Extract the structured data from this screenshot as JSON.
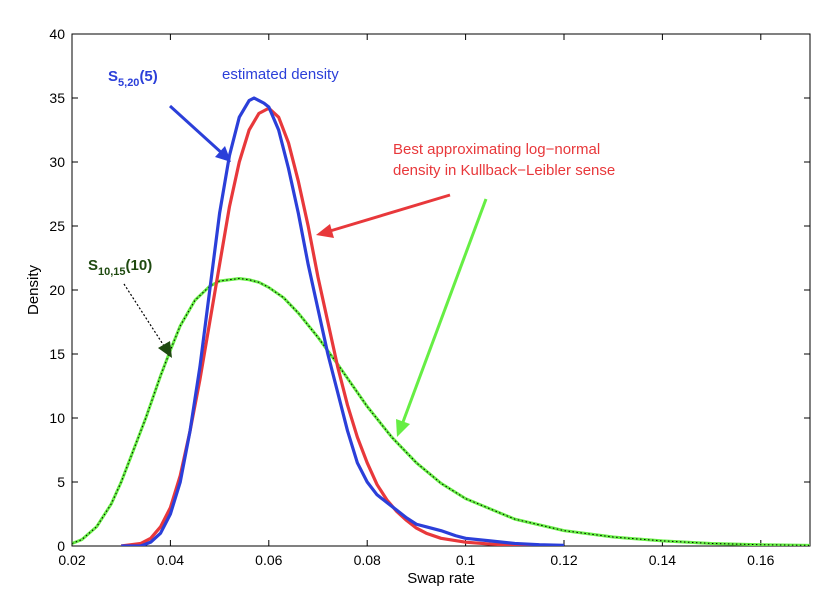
{
  "chart_data": {
    "type": "line",
    "title": "",
    "xlabel": "Swap rate",
    "ylabel": "Density",
    "xlim": [
      0.02,
      0.17
    ],
    "ylim": [
      0,
      40
    ],
    "x_ticks": [
      "0.02",
      "0.04",
      "0.06",
      "0.08",
      "0.1",
      "0.12",
      "0.14",
      "0.16"
    ],
    "y_ticks": [
      "0",
      "5",
      "10",
      "15",
      "20",
      "25",
      "30",
      "35",
      "40"
    ],
    "grid": false,
    "colors": {
      "estimated": "#2b3fd9",
      "lognormal": "#e8383b",
      "green": "#66ee44",
      "dotted": "#000000",
      "dark_green_text": "#1f4a10"
    },
    "series": [
      {
        "key": "estimated",
        "x": [
          0.03,
          0.034,
          0.036,
          0.038,
          0.04,
          0.042,
          0.044,
          0.046,
          0.048,
          0.05,
          0.052,
          0.054,
          0.056,
          0.057,
          0.058,
          0.059,
          0.06,
          0.062,
          0.064,
          0.066,
          0.068,
          0.07,
          0.072,
          0.074,
          0.076,
          0.078,
          0.08,
          0.082,
          0.084,
          0.086,
          0.088,
          0.09,
          0.092,
          0.095,
          0.098,
          0.1,
          0.105,
          0.11,
          0.115,
          0.12
        ],
        "y": [
          0,
          0,
          0.3,
          1.0,
          2.5,
          5.0,
          9.0,
          14.0,
          20.0,
          26.0,
          30.5,
          33.5,
          34.8,
          35.0,
          34.8,
          34.6,
          34.3,
          32.5,
          29.5,
          26.0,
          22.0,
          18.5,
          15.0,
          12.0,
          9.0,
          6.5,
          5.0,
          4.0,
          3.4,
          2.8,
          2.2,
          1.7,
          1.5,
          1.2,
          0.8,
          0.6,
          0.4,
          0.2,
          0.1,
          0.05
        ]
      },
      {
        "key": "lognormal",
        "x": [
          0.03,
          0.034,
          0.036,
          0.038,
          0.04,
          0.042,
          0.044,
          0.046,
          0.048,
          0.05,
          0.052,
          0.054,
          0.056,
          0.058,
          0.06,
          0.062,
          0.064,
          0.066,
          0.068,
          0.07,
          0.072,
          0.074,
          0.076,
          0.078,
          0.08,
          0.082,
          0.084,
          0.086,
          0.088,
          0.09,
          0.092,
          0.095,
          0.1,
          0.105,
          0.11,
          0.115,
          0.12
        ],
        "y": [
          0,
          0.2,
          0.6,
          1.5,
          3.0,
          5.5,
          9.0,
          13.0,
          17.5,
          22.0,
          26.5,
          30.0,
          32.5,
          33.8,
          34.2,
          33.5,
          31.5,
          28.5,
          25.0,
          21.0,
          17.5,
          14.0,
          11.0,
          8.5,
          6.5,
          4.8,
          3.6,
          2.7,
          2.0,
          1.4,
          1.0,
          0.6,
          0.3,
          0.15,
          0.07,
          0.03,
          0.01
        ]
      },
      {
        "key": "green",
        "x": [
          0.02,
          0.022,
          0.025,
          0.028,
          0.03,
          0.032,
          0.035,
          0.038,
          0.04,
          0.042,
          0.045,
          0.048,
          0.05,
          0.052,
          0.054,
          0.056,
          0.058,
          0.06,
          0.063,
          0.066,
          0.07,
          0.074,
          0.078,
          0.08,
          0.085,
          0.09,
          0.095,
          0.1,
          0.11,
          0.12,
          0.13,
          0.14,
          0.15,
          0.16,
          0.17
        ],
        "y": [
          0.2,
          0.5,
          1.5,
          3.3,
          5.0,
          7.0,
          10.0,
          13.3,
          15.3,
          17.2,
          19.2,
          20.3,
          20.7,
          20.8,
          20.9,
          20.8,
          20.6,
          20.2,
          19.4,
          18.2,
          16.3,
          14.2,
          12.0,
          10.9,
          8.5,
          6.5,
          4.9,
          3.7,
          2.1,
          1.2,
          0.7,
          0.4,
          0.2,
          0.1,
          0.05
        ]
      }
    ],
    "annotations": {
      "s520_main": "S",
      "s520_sub": "5,20",
      "s520_tail": "(5)",
      "estimated": "estimated density",
      "best_line1": "Best approximating log−normal",
      "best_line2": "density in Kullback−Leibler sense",
      "s1015_main": "S",
      "s1015_sub": "10,15",
      "s1015_tail": "(10)"
    }
  }
}
